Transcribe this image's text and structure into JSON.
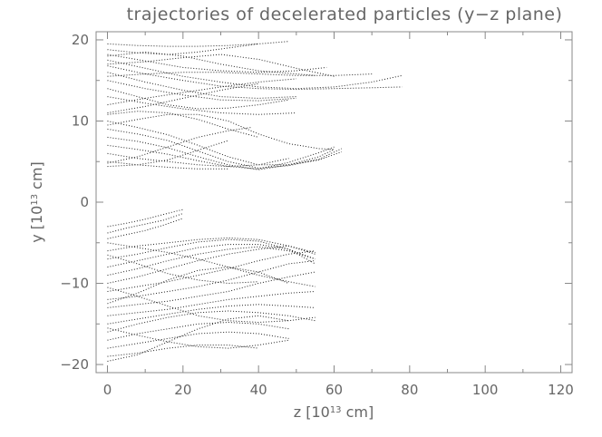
{
  "chart_data": {
    "type": "line",
    "title": "trajectories of decelerated particles (y−z plane)",
    "xlabel": "z [10^13 cm]",
    "ylabel": "y [10^13 cm]",
    "xlabel_parts": {
      "prefix": "z [10",
      "exp": "13",
      "suffix": " cm]"
    },
    "ylabel_parts": {
      "prefix": "y [10",
      "exp": "13",
      "suffix": " cm]"
    },
    "xlim": [
      -3,
      123
    ],
    "ylim": [
      -21,
      21
    ],
    "xticks": [
      0,
      20,
      40,
      60,
      80,
      100,
      120
    ],
    "yticks": [
      -20,
      -10,
      0,
      10,
      20
    ],
    "xtick_labels": [
      "0",
      "20",
      "40",
      "60",
      "80",
      "100",
      "120"
    ],
    "ytick_labels": [
      "−20",
      "−10",
      "0",
      "10",
      "20"
    ],
    "line_style": "dotted",
    "line_color": "#222222",
    "series": [
      {
        "x": [
          0,
          8,
          16,
          24,
          32,
          40,
          48
        ],
        "y": [
          19.5,
          19.3,
          19.2,
          19.2,
          19.3,
          19.5,
          19.8
        ]
      },
      {
        "x": [
          0,
          8,
          16,
          24,
          32,
          40
        ],
        "y": [
          18.8,
          18.4,
          18.2,
          18.5,
          19.0,
          19.5
        ]
      },
      {
        "x": [
          0,
          10,
          20,
          30,
          40,
          50,
          60,
          70,
          78
        ],
        "y": [
          17.5,
          16.5,
          15.5,
          14.8,
          14.2,
          14.0,
          14.2,
          14.8,
          15.6
        ]
      },
      {
        "x": [
          0,
          10,
          20,
          30,
          40,
          50,
          60,
          70,
          78
        ],
        "y": [
          16.8,
          15.8,
          15.0,
          14.3,
          14.0,
          13.9,
          14.0,
          14.1,
          14.2
        ]
      },
      {
        "x": [
          0,
          10,
          20,
          30,
          40,
          50,
          60
        ],
        "y": [
          17.0,
          17.3,
          17.8,
          18.2,
          17.6,
          16.5,
          15.5
        ]
      },
      {
        "x": [
          0,
          10,
          20,
          30,
          40,
          50,
          55
        ],
        "y": [
          18.0,
          18.5,
          18.0,
          17.0,
          16.2,
          15.8,
          15.6
        ]
      },
      {
        "x": [
          0,
          10,
          20,
          30,
          40,
          50
        ],
        "y": [
          16.0,
          14.8,
          13.8,
          13.0,
          12.8,
          13.0
        ]
      },
      {
        "x": [
          0,
          10,
          20,
          30,
          40,
          50
        ],
        "y": [
          15.0,
          14.0,
          13.2,
          12.6,
          12.5,
          12.8
        ]
      },
      {
        "x": [
          0,
          8,
          16,
          24,
          32,
          40,
          48
        ],
        "y": [
          14.0,
          13.0,
          12.0,
          11.5,
          11.6,
          12.0,
          12.6
        ]
      },
      {
        "x": [
          0,
          10,
          20,
          30,
          40,
          50
        ],
        "y": [
          13.0,
          12.2,
          11.5,
          11.0,
          10.8,
          11.0
        ]
      },
      {
        "x": [
          0,
          10,
          20,
          30,
          40,
          50
        ],
        "y": [
          12.0,
          12.8,
          13.5,
          14.2,
          14.8,
          15.2
        ]
      },
      {
        "x": [
          0,
          10,
          20,
          30,
          40
        ],
        "y": [
          11.0,
          11.8,
          12.8,
          13.8,
          14.6
        ]
      },
      {
        "x": [
          0,
          8,
          16,
          24,
          32,
          40,
          48,
          56,
          62
        ],
        "y": [
          10.0,
          9.2,
          8.3,
          7.0,
          5.6,
          4.6,
          4.6,
          5.2,
          6.2
        ]
      },
      {
        "x": [
          0,
          8,
          16,
          24,
          32,
          40,
          48,
          56,
          62
        ],
        "y": [
          9.0,
          8.4,
          7.6,
          6.3,
          5.0,
          4.2,
          4.5,
          5.3,
          6.6
        ]
      },
      {
        "x": [
          0,
          8,
          16,
          24,
          32,
          40,
          48,
          56,
          60
        ],
        "y": [
          8.0,
          7.5,
          6.7,
          5.6,
          4.6,
          4.0,
          4.6,
          5.6,
          6.5
        ]
      },
      {
        "x": [
          0,
          8,
          16,
          24,
          32,
          40,
          48,
          56,
          60
        ],
        "y": [
          7.0,
          6.5,
          5.9,
          5.1,
          4.4,
          4.1,
          4.9,
          6.1,
          6.8
        ]
      },
      {
        "x": [
          0,
          8,
          16,
          24,
          32,
          40,
          48
        ],
        "y": [
          6.0,
          5.4,
          5.0,
          4.6,
          4.4,
          4.6,
          5.4
        ]
      },
      {
        "x": [
          0,
          8,
          16,
          24,
          32
        ],
        "y": [
          5.0,
          4.6,
          4.3,
          4.1,
          4.1
        ]
      },
      {
        "x": [
          0,
          8,
          16,
          24,
          32
        ],
        "y": [
          4.4,
          4.6,
          5.2,
          6.4,
          7.6
        ]
      },
      {
        "x": [
          0,
          8,
          16,
          24,
          32,
          38
        ],
        "y": [
          4.8,
          5.6,
          6.8,
          8.0,
          8.8,
          9.2
        ]
      },
      {
        "x": [
          0,
          8,
          16,
          24,
          32,
          40,
          48,
          56,
          60
        ],
        "y": [
          9.5,
          10.2,
          10.8,
          10.8,
          10.0,
          8.4,
          7.2,
          6.6,
          6.5
        ]
      },
      {
        "x": [
          0,
          8,
          16,
          24,
          32,
          40
        ],
        "y": [
          10.8,
          11.2,
          11.0,
          10.2,
          9.0,
          8.0
        ]
      },
      {
        "x": [
          0,
          10,
          20,
          30,
          40,
          50,
          58
        ],
        "y": [
          18.2,
          17.4,
          16.6,
          16.2,
          16.0,
          16.2,
          16.6
        ]
      },
      {
        "x": [
          0,
          10,
          20,
          30,
          40,
          50,
          60,
          70
        ],
        "y": [
          15.5,
          15.8,
          16.0,
          16.0,
          15.8,
          15.6,
          15.6,
          15.8
        ]
      },
      {
        "x": [
          0,
          5,
          10,
          15,
          20
        ],
        "y": [
          -3.0,
          -2.6,
          -2.1,
          -1.5,
          -0.9
        ]
      },
      {
        "x": [
          0,
          5,
          10,
          15,
          20
        ],
        "y": [
          -3.8,
          -3.2,
          -2.7,
          -2.2,
          -1.4
        ]
      },
      {
        "x": [
          0,
          5,
          10,
          15,
          20
        ],
        "y": [
          -4.5,
          -4.0,
          -3.5,
          -2.8,
          -2.0
        ]
      },
      {
        "x": [
          0,
          8,
          16,
          24,
          32,
          40,
          48,
          55
        ],
        "y": [
          -5.0,
          -5.6,
          -6.2,
          -7.0,
          -8.0,
          -9.0,
          -9.8,
          -10.4
        ]
      },
      {
        "x": [
          0,
          8,
          16,
          24,
          32,
          40,
          48,
          55
        ],
        "y": [
          -6.0,
          -5.4,
          -5.0,
          -4.6,
          -4.4,
          -4.6,
          -5.4,
          -6.4
        ]
      },
      {
        "x": [
          0,
          8,
          16,
          24,
          32,
          40,
          48,
          55
        ],
        "y": [
          -7.0,
          -6.4,
          -5.6,
          -4.9,
          -4.6,
          -4.8,
          -5.8,
          -7.0
        ]
      },
      {
        "x": [
          0,
          8,
          16,
          24,
          32,
          40,
          48,
          55
        ],
        "y": [
          -8.0,
          -7.2,
          -6.4,
          -5.6,
          -5.2,
          -5.2,
          -5.8,
          -7.6
        ]
      },
      {
        "x": [
          0,
          8,
          16,
          24,
          32,
          40,
          48,
          55
        ],
        "y": [
          -9.0,
          -8.2,
          -7.2,
          -6.4,
          -5.8,
          -5.5,
          -6.0,
          -7.0
        ]
      },
      {
        "x": [
          0,
          8,
          16,
          24,
          32,
          40,
          48,
          55
        ],
        "y": [
          -10.0,
          -9.2,
          -8.2,
          -7.2,
          -6.4,
          -5.8,
          -5.4,
          -6.2
        ]
      },
      {
        "x": [
          0,
          8,
          16,
          24,
          32,
          40,
          48,
          55
        ],
        "y": [
          -11.0,
          -10.4,
          -9.8,
          -9.0,
          -8.2,
          -7.2,
          -6.4,
          -6.0
        ]
      },
      {
        "x": [
          0,
          8,
          16,
          24,
          32,
          40,
          48,
          55
        ],
        "y": [
          -12.0,
          -11.6,
          -11.0,
          -10.4,
          -9.6,
          -8.6,
          -7.6,
          -7.2
        ]
      },
      {
        "x": [
          0,
          8,
          16,
          24,
          32,
          40,
          48,
          55
        ],
        "y": [
          -13.0,
          -12.6,
          -12.2,
          -11.6,
          -11.0,
          -10.0,
          -9.2,
          -8.6
        ]
      },
      {
        "x": [
          0,
          8,
          16,
          24,
          32,
          40,
          48,
          55
        ],
        "y": [
          -14.0,
          -13.6,
          -13.2,
          -12.6,
          -12.0,
          -11.6,
          -11.2,
          -11.0
        ]
      },
      {
        "x": [
          0,
          8,
          16,
          24,
          32,
          40,
          48,
          55
        ],
        "y": [
          -15.0,
          -14.4,
          -13.8,
          -13.2,
          -12.8,
          -12.6,
          -12.8,
          -13.0
        ]
      },
      {
        "x": [
          0,
          8,
          16,
          24,
          32,
          40,
          48,
          55
        ],
        "y": [
          -16.0,
          -15.0,
          -14.2,
          -13.6,
          -13.4,
          -13.6,
          -14.0,
          -14.6
        ]
      },
      {
        "x": [
          0,
          8,
          16,
          24,
          32,
          40,
          48
        ],
        "y": [
          -17.0,
          -16.2,
          -15.6,
          -15.0,
          -14.8,
          -15.0,
          -15.6
        ]
      },
      {
        "x": [
          0,
          8,
          16,
          24,
          32,
          40,
          48
        ],
        "y": [
          -18.0,
          -17.4,
          -16.8,
          -16.2,
          -16.0,
          -16.2,
          -16.8
        ]
      },
      {
        "x": [
          0,
          8,
          16,
          24,
          32,
          40
        ],
        "y": [
          -19.0,
          -18.6,
          -18.0,
          -17.6,
          -17.6,
          -18.0
        ]
      },
      {
        "x": [
          0,
          8,
          16,
          24,
          32,
          40,
          48
        ],
        "y": [
          -19.6,
          -18.8,
          -17.2,
          -15.6,
          -14.4,
          -14.0,
          -14.6
        ]
      },
      {
        "x": [
          0,
          8,
          16,
          24,
          32,
          40,
          48
        ],
        "y": [
          -12.5,
          -11.2,
          -9.6,
          -8.4,
          -8.0,
          -8.6,
          -10.0
        ]
      },
      {
        "x": [
          0,
          8,
          16,
          24,
          32,
          40
        ],
        "y": [
          -6.5,
          -7.6,
          -8.8,
          -9.6,
          -10.0,
          -9.8
        ]
      },
      {
        "x": [
          0,
          8,
          16,
          24,
          32,
          40,
          48
        ],
        "y": [
          -15.5,
          -16.4,
          -17.2,
          -17.8,
          -18.0,
          -17.6,
          -17.0
        ]
      },
      {
        "x": [
          0,
          8,
          16,
          24,
          32,
          40,
          48,
          55
        ],
        "y": [
          -10.5,
          -11.6,
          -12.8,
          -14.0,
          -14.6,
          -14.8,
          -14.6,
          -14.2
        ]
      }
    ]
  }
}
